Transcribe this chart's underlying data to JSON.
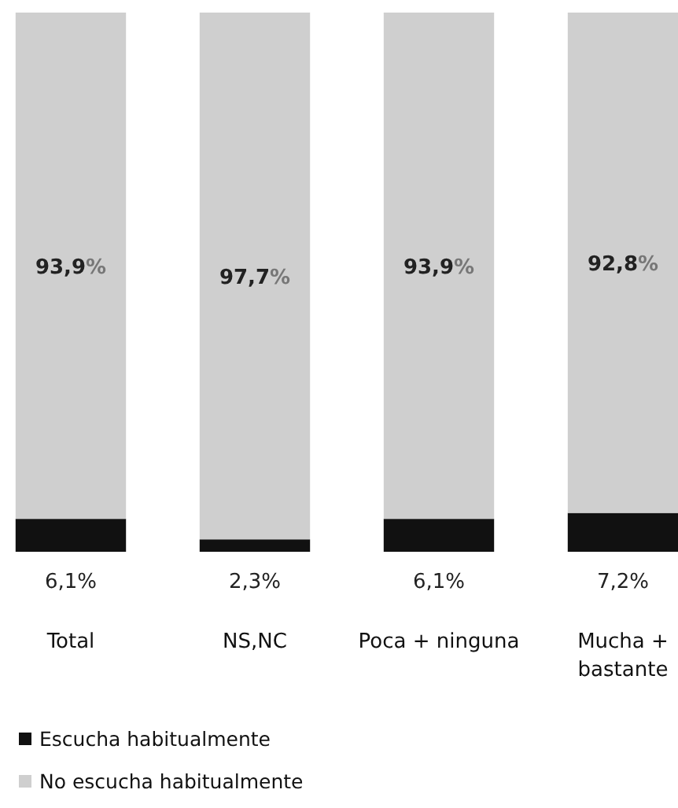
{
  "chart_data": {
    "type": "bar",
    "stacked": true,
    "categories": [
      "Total",
      "NS,NC",
      "Poca + ninguna",
      "Mucha + bastante"
    ],
    "ylim": [
      0,
      100
    ],
    "tick_labels": "x",
    "legend": "bottom",
    "series": [
      {
        "name": "Escucha habitualmente",
        "color": "#111111",
        "values": [
          6.1,
          2.3,
          6.1,
          7.2
        ],
        "value_labels": [
          "6,1%",
          "2,3%",
          "6,1%",
          "7,2%"
        ]
      },
      {
        "name": "No escucha habitualmente",
        "color": "#cfcfcf",
        "values": [
          93.9,
          97.7,
          93.9,
          92.8
        ],
        "value_labels": [
          "93,9%",
          "97,7%",
          "93,9%",
          "92,8%"
        ]
      }
    ]
  }
}
